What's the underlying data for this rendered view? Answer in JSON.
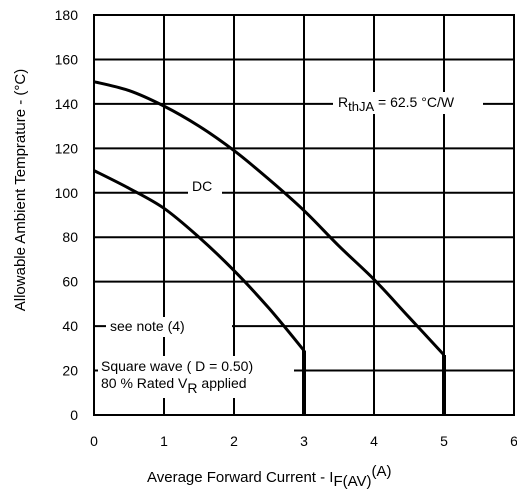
{
  "chart_data": {
    "type": "line",
    "title": "",
    "xlabel": "Average Forward Current - I",
    "xlabel_sub": "F(AV)",
    "xlabel_unit": "(A)",
    "ylabel": "Allowable Ambient Temprature - (°C)",
    "xlim": [
      0,
      6
    ],
    "ylim": [
      0,
      180
    ],
    "x_ticks": [
      "0",
      "1",
      "2",
      "3",
      "4",
      "5",
      "6"
    ],
    "y_ticks": [
      "0",
      "20",
      "40",
      "60",
      "80",
      "100",
      "120",
      "140",
      "160",
      "180"
    ],
    "grid": true,
    "series": [
      {
        "name": "DC",
        "color": "#000000",
        "points": [
          [
            0,
            150
          ],
          [
            0.5,
            146
          ],
          [
            1,
            139
          ],
          [
            1.5,
            130
          ],
          [
            2,
            119
          ],
          [
            2.5,
            106
          ],
          [
            3,
            92
          ],
          [
            3.5,
            76
          ],
          [
            4,
            61
          ],
          [
            4.5,
            44
          ],
          [
            5,
            27
          ]
        ]
      },
      {
        "name": "Square wave ( D = 0.50) 80 % Rated V_R applied",
        "color": "#000000",
        "points": [
          [
            0,
            110
          ],
          [
            0.5,
            102
          ],
          [
            1,
            93
          ],
          [
            1.5,
            80
          ],
          [
            2,
            65
          ],
          [
            2.5,
            48
          ],
          [
            3,
            29
          ]
        ]
      }
    ],
    "limit_lines": [
      {
        "x": 3,
        "y_from": 0,
        "y_to": 29
      },
      {
        "x": 5,
        "y_from": 0,
        "y_to": 27
      }
    ],
    "annotations": {
      "rthja_main": "R",
      "rthja_sub": "thJA",
      "rthja_rest": " = 62.5 °C/W",
      "dc": "DC",
      "note": "see note (4)",
      "square_line1": "Square wave ( D = 0.50)",
      "square_line2_a": "80 % Rated  V",
      "square_line2_sub": "R",
      "square_line2_b": " applied"
    }
  }
}
